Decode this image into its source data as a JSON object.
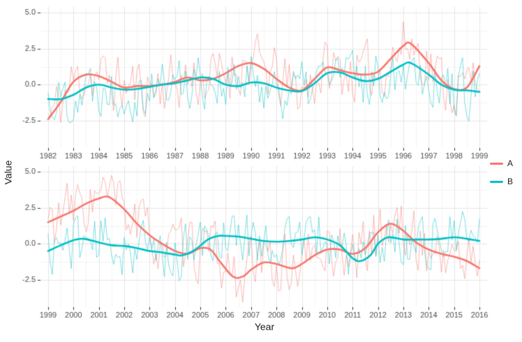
{
  "chart_data": {
    "type": "line",
    "title": "",
    "xlabel": "Year",
    "ylabel": "Value",
    "grid": true,
    "ylim": [
      -4.4,
      5.4
    ],
    "y_ticks": [
      -2.5,
      0.0,
      2.5,
      5.0
    ],
    "y_tick_labels": [
      "-2.5",
      "0.0",
      "2.5",
      "5.0"
    ],
    "legend": {
      "position": "right",
      "entries": [
        {
          "name": "A",
          "color": "#F8766D"
        },
        {
          "name": "B",
          "color": "#00BFC4"
        }
      ]
    },
    "style": {
      "major_grid_color": "#e5e5e5",
      "minor_grid_color": "#f3f3f3",
      "tick_color": "#333333",
      "tick_label_color": "#4d4d4d",
      "noisy_alpha": 0.5,
      "noisy_width": 1,
      "smooth_width": 2.6
    },
    "panels": [
      {
        "name": "panel-1982-1999",
        "xlim": [
          1981.7,
          1999.3
        ],
        "x_ticks": [
          1982,
          1983,
          1984,
          1985,
          1986,
          1987,
          1988,
          1989,
          1990,
          1991,
          1992,
          1993,
          1994,
          1995,
          1996,
          1997,
          1998,
          1999
        ],
        "series": [
          {
            "name": "A",
            "color": "#F8766D",
            "noise": {
              "seed": 11,
              "phi": 0.3,
              "amplitude": 1.9,
              "points_per_year": 12
            },
            "trend": {
              "x": [
                1982,
                1982.5,
                1983,
                1983.5,
                1984,
                1984.5,
                1985,
                1985.5,
                1986,
                1986.5,
                1987,
                1987.5,
                1988,
                1988.5,
                1989,
                1989.5,
                1990,
                1990.5,
                1991,
                1991.5,
                1992,
                1992.5,
                1993,
                1993.5,
                1994,
                1994.5,
                1995,
                1995.5,
                1996,
                1996.3,
                1997,
                1997.5,
                1998,
                1998.5,
                1999
              ],
              "y": [
                -2.4,
                -1.2,
                0.2,
                0.7,
                0.6,
                0.2,
                -0.2,
                -0.1,
                -0.1,
                0,
                0.2,
                0.5,
                0.3,
                0.4,
                0.8,
                1.3,
                1.5,
                1.1,
                0.4,
                -0.2,
                -0.4,
                0.4,
                1.2,
                1.0,
                0.8,
                0.7,
                0.9,
                1.8,
                2.7,
                2.85,
                1.5,
                0.3,
                -0.3,
                -0.2,
                1.3
              ]
            }
          },
          {
            "name": "B",
            "color": "#00BFC4",
            "noise": {
              "seed": 22,
              "phi": 0.3,
              "amplitude": 1.8,
              "points_per_year": 12
            },
            "trend": {
              "x": [
                1982,
                1982.5,
                1983,
                1983.5,
                1984,
                1984.5,
                1985,
                1985.5,
                1986,
                1986.5,
                1987,
                1987.5,
                1988,
                1988.5,
                1989,
                1989.5,
                1990,
                1990.5,
                1991,
                1991.5,
                1992,
                1992.5,
                1993,
                1993.5,
                1994,
                1994.5,
                1995,
                1995.5,
                1996,
                1996.3,
                1997,
                1997.5,
                1998,
                1998.5,
                1999
              ],
              "y": [
                -1.0,
                -1.0,
                -0.7,
                -0.2,
                0.0,
                -0.2,
                -0.35,
                -0.3,
                -0.15,
                0,
                0.1,
                0.3,
                0.5,
                0.4,
                0.0,
                -0.1,
                0.15,
                0.1,
                -0.2,
                -0.4,
                -0.45,
                0.1,
                0.8,
                0.85,
                0.5,
                0.25,
                0.4,
                0.9,
                1.4,
                1.5,
                0.7,
                0.0,
                -0.35,
                -0.4,
                -0.5
              ]
            }
          }
        ]
      },
      {
        "name": "panel-1999-2016",
        "xlim": [
          1998.7,
          2016.3
        ],
        "x_ticks": [
          1999,
          2000,
          2001,
          2002,
          2003,
          2004,
          2005,
          2006,
          2007,
          2008,
          2009,
          2010,
          2011,
          2012,
          2013,
          2014,
          2015,
          2016
        ],
        "series": [
          {
            "name": "A",
            "color": "#F8766D",
            "noise": {
              "seed": 33,
              "phi": 0.3,
              "amplitude": 1.9,
              "points_per_year": 12
            },
            "trend": {
              "x": [
                1999,
                1999.5,
                2000,
                2000.5,
                2001,
                2001.4,
                2002,
                2002.5,
                2003,
                2003.5,
                2004,
                2004.5,
                2005,
                2005.4,
                2005.8,
                2006.3,
                2006.7,
                2007,
                2007.5,
                2008,
                2008.6,
                2009,
                2009.5,
                2010,
                2010.5,
                2011,
                2011.5,
                2012,
                2012.5,
                2013,
                2013.5,
                2014,
                2014.5,
                2015,
                2015.5,
                2016
              ],
              "y": [
                1.5,
                1.9,
                2.3,
                2.8,
                3.15,
                3.25,
                2.4,
                1.4,
                0.6,
                0.0,
                -0.5,
                -0.7,
                -0.3,
                -0.4,
                -1.3,
                -2.3,
                -2.25,
                -1.8,
                -1.3,
                -1.4,
                -1.7,
                -1.4,
                -0.8,
                -0.4,
                -0.4,
                -0.7,
                -0.3,
                0.8,
                1.4,
                0.9,
                0.1,
                -0.4,
                -0.7,
                -0.9,
                -1.2,
                -1.7
              ]
            }
          },
          {
            "name": "B",
            "color": "#00BFC4",
            "noise": {
              "seed": 44,
              "phi": 0.3,
              "amplitude": 1.8,
              "points_per_year": 12
            },
            "trend": {
              "x": [
                1999,
                1999.5,
                2000,
                2000.4,
                2001,
                2001.5,
                2002,
                2002.5,
                2003,
                2003.5,
                2004,
                2004.3,
                2004.8,
                2005.3,
                2005.7,
                2006,
                2006.5,
                2007,
                2007.5,
                2008,
                2008.5,
                2009,
                2009.5,
                2010,
                2010.5,
                2011,
                2011.3,
                2011.7,
                2012,
                2012.4,
                2013,
                2013.5,
                2014,
                2014.5,
                2015,
                2015.5,
                2016
              ],
              "y": [
                -0.5,
                -0.1,
                0.25,
                0.35,
                0.1,
                -0.1,
                -0.15,
                -0.3,
                -0.5,
                -0.6,
                -0.75,
                -0.8,
                -0.4,
                0.3,
                0.55,
                0.55,
                0.5,
                0.35,
                0.2,
                0.15,
                0.2,
                0.3,
                0.45,
                0.3,
                -0.1,
                -1.0,
                -1.2,
                -0.8,
                0.0,
                0.45,
                0.3,
                0.3,
                0.3,
                0.35,
                0.45,
                0.35,
                0.2
              ]
            }
          }
        ]
      }
    ]
  }
}
